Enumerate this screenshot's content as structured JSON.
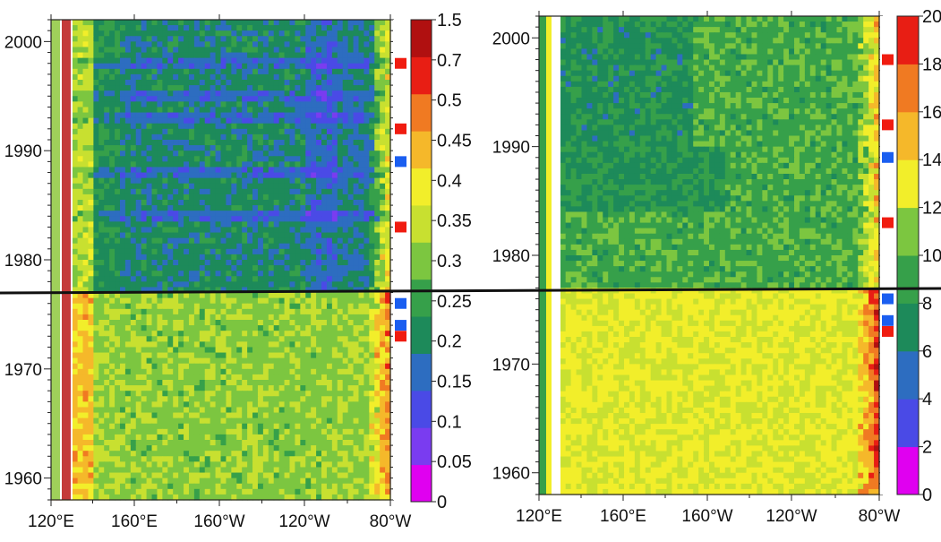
{
  "chart_data": [
    {
      "type": "heatmap",
      "title": "",
      "xlabel": "",
      "ylabel": "",
      "x_ticks": [
        "120°E",
        "160°E",
        "160°W",
        "120°W",
        "80°W"
      ],
      "y_ticks": [
        1960,
        1970,
        1980,
        1990,
        2000
      ],
      "ylim": [
        1958,
        2002
      ],
      "colorbar": {
        "labels": [
          "0",
          "0.05",
          "0.1",
          "0.15",
          "0.2",
          "0.25",
          "0.3",
          "0.35",
          "0.4",
          "0.45",
          "0.5",
          "0.7",
          "1.5"
        ],
        "colors": [
          "#e000f0",
          "#7a3cf0",
          "#4a4ae6",
          "#2d6dc0",
          "#1d8a5a",
          "#36a04a",
          "#7cc640",
          "#c8e030",
          "#f2ee2a",
          "#f5b82a",
          "#f07a22",
          "#e81e14",
          "#b01010"
        ]
      },
      "markers": [
        {
          "year": 1998,
          "color": "red"
        },
        {
          "year": 1992,
          "color": "red"
        },
        {
          "year": 1989,
          "color": "blue"
        },
        {
          "year": 1983,
          "color": "red"
        },
        {
          "year": 1976,
          "color": "blue"
        },
        {
          "year": 1974,
          "color": "blue"
        },
        {
          "year": 1973,
          "color": "red"
        }
      ],
      "regime_shift_year": 1977
    },
    {
      "type": "heatmap",
      "title": "",
      "xlabel": "",
      "ylabel": "",
      "x_ticks": [
        "120°E",
        "160°E",
        "160°W",
        "120°W",
        "80°W"
      ],
      "y_ticks": [
        1960,
        1970,
        1980,
        1990,
        2000
      ],
      "ylim": [
        1958,
        2002
      ],
      "colorbar": {
        "labels": [
          "0",
          "2",
          "4",
          "6",
          "8",
          "10",
          "12",
          "14",
          "16",
          "18",
          "20"
        ],
        "colors": [
          "#e000f0",
          "#4a4ae6",
          "#2d6dc0",
          "#1d8a5a",
          "#36a04a",
          "#7cc640",
          "#f2ee2a",
          "#f5b82a",
          "#f07a22",
          "#e81e14"
        ]
      },
      "markers": [
        {
          "year": 1998,
          "color": "red"
        },
        {
          "year": 1992,
          "color": "red"
        },
        {
          "year": 1989,
          "color": "blue"
        },
        {
          "year": 1983,
          "color": "red"
        },
        {
          "year": 1976,
          "color": "blue"
        },
        {
          "year": 1974,
          "color": "blue"
        },
        {
          "year": 1973,
          "color": "red"
        }
      ],
      "regime_shift_year": 1977
    }
  ],
  "marker_colors": {
    "red": "#f01c10",
    "blue": "#1a5ef0"
  },
  "divider_color": "#111111"
}
